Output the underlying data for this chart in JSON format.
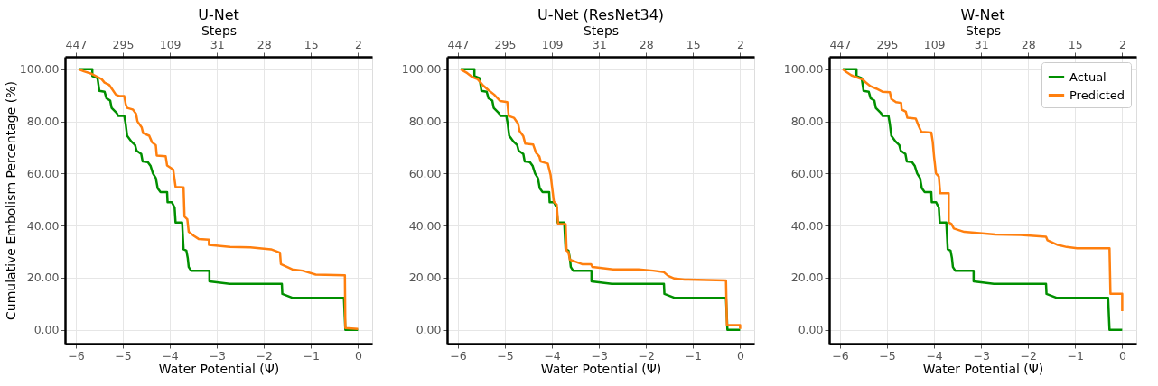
{
  "chart_data": [
    {
      "type": "line",
      "title": "U-Net",
      "xlabel": "Water Potential (Ψ)",
      "ylabel": "Cumulative Embolism Percentage (%)",
      "x2label": "Steps",
      "annotations": [
        "447",
        "295",
        "109",
        "31",
        "28",
        "15",
        "2"
      ],
      "xlim": [
        -6.23,
        0.3
      ],
      "ylim": [
        -5.3,
        104.8
      ],
      "xticks": [
        -6,
        -5,
        -4,
        -3,
        -2,
        -1,
        0
      ],
      "yticks": [
        {
          "value": 0,
          "label": "0.00"
        },
        {
          "value": 20,
          "label": "20.00"
        },
        {
          "value": 40,
          "label": "40.00"
        },
        {
          "value": 60,
          "label": "60.00"
        },
        {
          "value": 80,
          "label": "80.00"
        },
        {
          "value": 100,
          "label": "100.00"
        }
      ],
      "grid": true,
      "legend": false,
      "line_style": "solid",
      "series": [
        {
          "color": "#008f00",
          "x": [
            -5.94,
            -5.65,
            -5.65,
            -5.54,
            -5.5,
            -5.39,
            -5.35,
            -5.27,
            -5.24,
            -5.13,
            -5.1,
            -4.97,
            -4.94,
            -4.91,
            -4.82,
            -4.74,
            -4.71,
            -4.61,
            -4.58,
            -4.47,
            -4.41,
            -4.36,
            -4.3,
            -4.26,
            -4.2,
            -4.06,
            -4.05,
            -3.96,
            -3.9,
            -3.88,
            -3.74,
            -3.71,
            -3.65,
            -3.62,
            -3.6,
            -3.55,
            -3.16,
            -3.16,
            -2.73,
            -1.62,
            -1.61,
            -1.4,
            -0.3,
            -0.27,
            0
          ],
          "values": [
            100,
            100,
            97.4,
            96.6,
            91.7,
            91.4,
            88.9,
            88.0,
            85.2,
            83.2,
            82.1,
            82.1,
            78.9,
            74.5,
            72.3,
            70.9,
            68.8,
            67.5,
            64.6,
            64.4,
            62.9,
            60.0,
            58.3,
            54.3,
            52.9,
            52.9,
            49.0,
            49.0,
            46.9,
            41.2,
            41.2,
            30.9,
            30.4,
            27.5,
            24.1,
            22.7,
            22.7,
            18.6,
            17.6,
            17.6,
            13.8,
            12.3,
            12.3,
            0,
            0
          ]
        },
        {
          "color": "#ff7f0e",
          "x": [
            -5.94,
            -5.83,
            -5.67,
            -5.54,
            -5.45,
            -5.39,
            -5.29,
            -5.23,
            -5.15,
            -5.07,
            -4.97,
            -4.94,
            -4.91,
            -4.79,
            -4.72,
            -4.69,
            -4.6,
            -4.57,
            -4.44,
            -4.38,
            -4.3,
            -4.28,
            -4.09,
            -4.06,
            -3.93,
            -3.88,
            -3.71,
            -3.69,
            -3.63,
            -3.6,
            -3.49,
            -3.39,
            -3.17,
            -3.17,
            -2.73,
            -2.29,
            -1.85,
            -1.66,
            -1.64,
            -1.4,
            -1.18,
            -0.9,
            -0.28,
            -0.27,
            0
          ],
          "values": [
            100,
            99.2,
            98.3,
            97.1,
            96.2,
            94.9,
            94.0,
            92.4,
            90.3,
            89.7,
            89.7,
            86.6,
            85.2,
            84.6,
            82.9,
            80.0,
            77.7,
            75.5,
            74.5,
            72.0,
            70.9,
            66.9,
            66.6,
            63.1,
            61.5,
            54.9,
            54.7,
            43.5,
            42.4,
            37.6,
            36.1,
            34.9,
            34.6,
            32.6,
            31.8,
            31.7,
            30.9,
            29.6,
            25.2,
            23.2,
            22.7,
            21.2,
            20.9,
            0.7,
            0.3
          ]
        }
      ]
    },
    {
      "type": "line",
      "title": "U-Net (ResNet34)",
      "xlabel": "Water Potential (Ψ)",
      "x2label": "Steps",
      "annotations": [
        "447",
        "295",
        "109",
        "31",
        "28",
        "15",
        "2"
      ],
      "xlim": [
        -6.23,
        0.3
      ],
      "ylim": [
        -5.3,
        104.8
      ],
      "xticks": [
        -6,
        -5,
        -4,
        -3,
        -2,
        -1,
        0
      ],
      "yticks": [
        {
          "value": 0,
          "label": "0.00"
        },
        {
          "value": 20,
          "label": "20.00"
        },
        {
          "value": 40,
          "label": "40.00"
        },
        {
          "value": 60,
          "label": "60.00"
        },
        {
          "value": 80,
          "label": "80.00"
        },
        {
          "value": 100,
          "label": "100.00"
        }
      ],
      "grid": true,
      "legend": false,
      "line_style": "solid",
      "series": [
        {
          "color": "#008f00",
          "x": [
            -5.94,
            -5.65,
            -5.65,
            -5.54,
            -5.5,
            -5.39,
            -5.35,
            -5.27,
            -5.24,
            -5.13,
            -5.1,
            -4.97,
            -4.94,
            -4.91,
            -4.82,
            -4.74,
            -4.71,
            -4.61,
            -4.58,
            -4.47,
            -4.41,
            -4.36,
            -4.3,
            -4.26,
            -4.2,
            -4.06,
            -4.05,
            -3.96,
            -3.9,
            -3.88,
            -3.74,
            -3.71,
            -3.65,
            -3.62,
            -3.6,
            -3.55,
            -3.16,
            -3.16,
            -2.73,
            -1.62,
            -1.61,
            -1.4,
            -0.3,
            -0.27,
            0
          ],
          "values": [
            100,
            100,
            97.4,
            96.6,
            91.7,
            91.4,
            88.9,
            88.0,
            85.2,
            83.2,
            82.1,
            82.1,
            78.9,
            74.5,
            72.3,
            70.9,
            68.8,
            67.5,
            64.6,
            64.4,
            62.9,
            60.0,
            58.3,
            54.3,
            52.9,
            52.9,
            49.0,
            49.0,
            46.9,
            41.2,
            41.2,
            30.9,
            30.4,
            27.5,
            24.1,
            22.7,
            22.7,
            18.6,
            17.6,
            17.6,
            13.8,
            12.3,
            12.3,
            0,
            0
          ]
        },
        {
          "color": "#ff7f0e",
          "x": [
            -5.94,
            -5.8,
            -5.7,
            -5.58,
            -5.46,
            -5.35,
            -5.23,
            -5.1,
            -4.95,
            -4.92,
            -4.81,
            -4.72,
            -4.69,
            -4.61,
            -4.57,
            -4.4,
            -4.34,
            -4.27,
            -4.24,
            -4.09,
            -4.03,
            -3.96,
            -3.9,
            -3.87,
            -3.71,
            -3.69,
            -3.65,
            -3.62,
            -3.49,
            -3.36,
            -3.17,
            -3.14,
            -2.7,
            -2.16,
            -1.85,
            -1.62,
            -1.53,
            -1.4,
            -1.18,
            -0.3,
            -0.28,
            0,
            0
          ],
          "values": [
            100,
            98.5,
            97.1,
            96.2,
            93.7,
            92.0,
            90.3,
            87.8,
            87.4,
            82.1,
            81.4,
            79.1,
            76.3,
            74.3,
            71.5,
            71.1,
            68.0,
            66.6,
            64.6,
            63.8,
            59.5,
            49.2,
            48.1,
            40.6,
            40.6,
            30.4,
            29.8,
            26.9,
            26.1,
            25.2,
            25.2,
            24.1,
            23.2,
            23.2,
            22.7,
            22.1,
            20.7,
            19.7,
            19.3,
            18.9,
            1.8,
            1.8,
            0.3
          ]
        }
      ]
    },
    {
      "type": "line",
      "title": "W-Net",
      "xlabel": "Water Potential (Ψ)",
      "x2label": "Steps",
      "annotations": [
        "447",
        "295",
        "109",
        "31",
        "28",
        "15",
        "2"
      ],
      "xlim": [
        -6.23,
        0.3
      ],
      "ylim": [
        -5.3,
        104.8
      ],
      "xticks": [
        -6,
        -5,
        -4,
        -3,
        -2,
        -1,
        0
      ],
      "yticks": [
        {
          "value": 0,
          "label": "0.00"
        },
        {
          "value": 20,
          "label": "20.00"
        },
        {
          "value": 40,
          "label": "40.00"
        },
        {
          "value": 60,
          "label": "60.00"
        },
        {
          "value": 80,
          "label": "80.00"
        },
        {
          "value": 100,
          "label": "100.00"
        }
      ],
      "grid": true,
      "legend": "top right",
      "line_style": "solid",
      "series": [
        {
          "name": "Actual",
          "color": "#008f00",
          "x": [
            -5.94,
            -5.65,
            -5.65,
            -5.54,
            -5.5,
            -5.39,
            -5.35,
            -5.27,
            -5.24,
            -5.13,
            -5.1,
            -4.97,
            -4.94,
            -4.91,
            -4.82,
            -4.74,
            -4.71,
            -4.61,
            -4.58,
            -4.47,
            -4.41,
            -4.36,
            -4.3,
            -4.26,
            -4.2,
            -4.06,
            -4.05,
            -3.96,
            -3.9,
            -3.88,
            -3.74,
            -3.71,
            -3.65,
            -3.62,
            -3.6,
            -3.55,
            -3.16,
            -3.16,
            -2.73,
            -1.62,
            -1.61,
            -1.4,
            -0.3,
            -0.27,
            0
          ],
          "values": [
            100,
            100,
            97.4,
            96.6,
            91.7,
            91.4,
            88.9,
            88.0,
            85.2,
            83.2,
            82.1,
            82.1,
            78.9,
            74.5,
            72.3,
            70.9,
            68.8,
            67.5,
            64.6,
            64.4,
            62.9,
            60.0,
            58.3,
            54.3,
            52.9,
            52.9,
            49.0,
            49.0,
            46.9,
            41.2,
            41.2,
            30.9,
            30.4,
            27.5,
            24.1,
            22.7,
            22.7,
            18.6,
            17.6,
            17.6,
            13.8,
            12.3,
            12.3,
            0,
            0
          ]
        },
        {
          "name": "Predicted",
          "color": "#ff7f0e",
          "x": [
            -5.94,
            -5.86,
            -5.76,
            -5.67,
            -5.51,
            -5.45,
            -5.35,
            -5.23,
            -5.1,
            -4.94,
            -4.91,
            -4.81,
            -4.7,
            -4.69,
            -4.6,
            -4.57,
            -4.39,
            -4.33,
            -4.27,
            -4.06,
            -4.03,
            -4.0,
            -3.96,
            -3.9,
            -3.87,
            -3.69,
            -3.69,
            -3.63,
            -3.58,
            -3.36,
            -2.7,
            -2.16,
            -1.62,
            -1.59,
            -1.37,
            -1.18,
            -0.96,
            -0.27,
            -0.25,
            0,
            0
          ],
          "values": [
            100,
            98.9,
            97.7,
            97.1,
            96.0,
            94.9,
            93.5,
            92.6,
            91.4,
            91.2,
            88.6,
            87.4,
            87.1,
            84.6,
            83.7,
            81.4,
            81.1,
            78.3,
            76.0,
            75.7,
            72.3,
            66.3,
            60.0,
            58.9,
            52.4,
            52.4,
            41.2,
            40.6,
            38.9,
            37.6,
            36.6,
            36.4,
            35.7,
            34.4,
            32.6,
            31.8,
            31.3,
            31.3,
            13.8,
            13.8,
            7.2
          ]
        }
      ]
    }
  ]
}
